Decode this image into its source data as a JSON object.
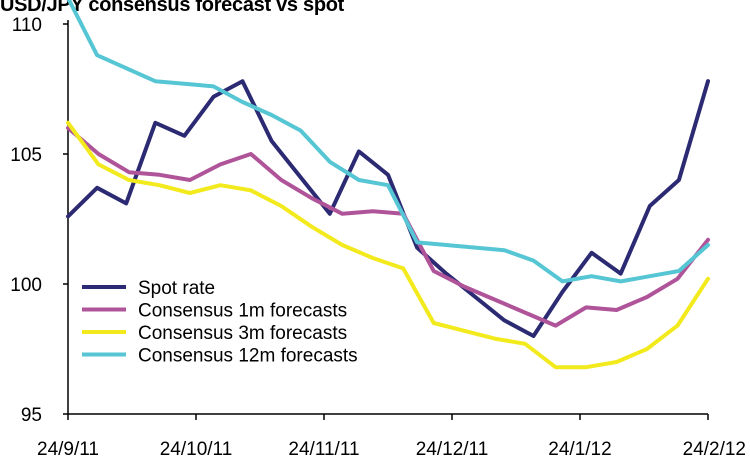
{
  "chart_data": {
    "type": "line",
    "title": "USD/JPY consensus forecast vs spot",
    "xlabel": "",
    "ylabel": "",
    "ylim": [
      95,
      110
    ],
    "yticks": [
      95,
      100,
      105,
      110
    ],
    "x_tick_labels": [
      "24/9/11",
      "24/10/11",
      "24/11/11",
      "24/12/11",
      "24/1/12",
      "24/2/12"
    ],
    "x_tick_index": [
      0,
      5,
      10,
      15,
      20,
      25
    ],
    "legend_position": "bottom-left",
    "grid": false,
    "series": [
      {
        "name": "Spot rate",
        "color": "#2b2a72",
        "values": [
          102.6,
          103.7,
          103.1,
          106.2,
          105.7,
          107.2,
          107.8,
          105.5,
          104.1,
          102.7,
          105.1,
          104.2,
          101.4,
          100.4,
          99.5,
          98.6,
          98.0,
          99.7,
          101.2,
          100.4,
          103.0,
          104.0,
          107.8
        ]
      },
      {
        "name": "Consensus 1m forecasts",
        "color": "#b0549a",
        "values": [
          106.0,
          105.0,
          104.3,
          104.2,
          104.0,
          104.6,
          105.0,
          104.0,
          103.3,
          102.7,
          102.8,
          102.7,
          100.5,
          99.9,
          99.4,
          98.9,
          98.4,
          99.1,
          99.0,
          99.5,
          100.2,
          101.7
        ]
      },
      {
        "name": "Consensus 3m forecasts",
        "color": "#f2ea1c",
        "values": [
          106.2,
          104.6,
          104.0,
          103.8,
          103.5,
          103.8,
          103.6,
          103.0,
          102.2,
          101.5,
          101.0,
          100.6,
          98.5,
          98.2,
          97.9,
          97.7,
          96.8,
          96.8,
          97.0,
          97.5,
          98.4,
          100.2
        ]
      },
      {
        "name": "Consensus 12m forecasts",
        "color": "#57c6d4",
        "values": [
          111.0,
          108.8,
          108.3,
          107.8,
          107.7,
          107.6,
          107.0,
          106.5,
          105.9,
          104.7,
          104.0,
          103.8,
          101.6,
          101.5,
          101.4,
          101.3,
          100.9,
          100.1,
          100.3,
          100.1,
          100.3,
          100.5,
          101.5
        ]
      }
    ]
  }
}
